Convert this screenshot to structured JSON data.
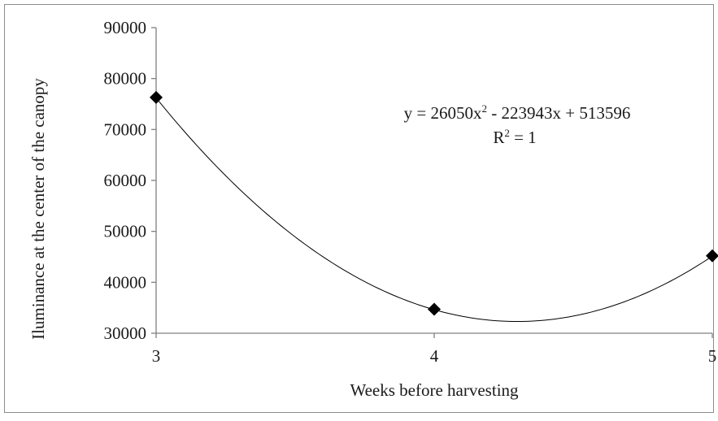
{
  "chart_data": {
    "type": "scatter",
    "xlabel": "Weeks before harvesting",
    "ylabel": "Iluminance at the center of the canopy",
    "xlim": [
      3,
      5
    ],
    "ylim": [
      30000,
      90000
    ],
    "x_ticks": [
      "3",
      "4",
      "5"
    ],
    "y_ticks": [
      "30000",
      "40000",
      "50000",
      "60000",
      "70000",
      "80000",
      "90000"
    ],
    "points": [
      {
        "x": 3,
        "y": 76300
      },
      {
        "x": 4,
        "y": 34700
      },
      {
        "x": 5,
        "y": 45200
      }
    ],
    "trendline": {
      "type": "polynomial-2",
      "coefficients": [
        26050,
        -223943,
        513596
      ]
    },
    "annotations": {
      "equation": {
        "prefix": "y = 26050x",
        "exponent": "2",
        "suffix": " - 223943x + 513596"
      },
      "r2": {
        "prefix": "R",
        "exponent": "2",
        "suffix": " = 1"
      }
    },
    "grid": false,
    "legend": "none",
    "marker": "diamond",
    "colors": {
      "series": "#000000",
      "axis": "#808080",
      "frame": "#8c8c8c"
    }
  }
}
